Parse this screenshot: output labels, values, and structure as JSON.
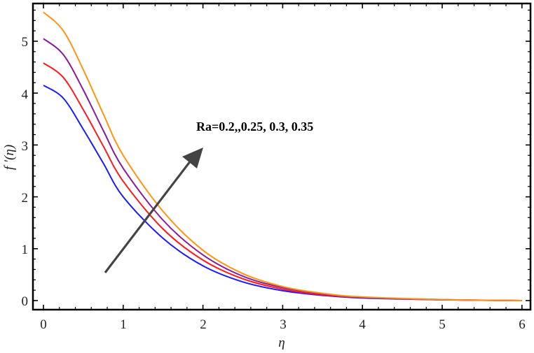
{
  "chart_data": {
    "type": "line",
    "title": "",
    "xlabel": "η",
    "ylabel": "f ′(η)",
    "xlim": [
      -0.1,
      6.1
    ],
    "ylim": [
      -0.15,
      5.75
    ],
    "xticks": [
      0,
      1,
      2,
      3,
      4,
      5,
      6
    ],
    "yticks": [
      0,
      1,
      2,
      3,
      4,
      5
    ],
    "grid": false,
    "legend": null,
    "annotation": {
      "text": "Ra=0.2,,0.25, 0.3, 0.35",
      "arrow": {
        "from": [
          0.8,
          0.55
        ],
        "to": [
          2.0,
          2.95
        ],
        "color": "#444444"
      }
    },
    "x": [
      0,
      0.25,
      0.5,
      0.75,
      1,
      1.5,
      2,
      2.5,
      3,
      3.5,
      4,
      5,
      6
    ],
    "series": [
      {
        "name": "Ra=0.2",
        "color": "#1a1aff",
        "values": [
          4.15,
          3.9,
          3.3,
          2.65,
          2.0,
          1.2,
          0.67,
          0.36,
          0.19,
          0.1,
          0.05,
          0.015,
          0.0
        ]
      },
      {
        "name": "Ra=0.25",
        "color": "#ff1a1a",
        "values": [
          4.58,
          4.3,
          3.68,
          2.98,
          2.3,
          1.38,
          0.78,
          0.42,
          0.22,
          0.11,
          0.06,
          0.017,
          0.0
        ]
      },
      {
        "name": "Ra=0.3",
        "color": "#8b1a9b",
        "values": [
          5.05,
          4.74,
          4.06,
          3.28,
          2.55,
          1.55,
          0.88,
          0.47,
          0.25,
          0.13,
          0.065,
          0.018,
          0.0
        ]
      },
      {
        "name": "Ra=0.35",
        "color": "#ff9410",
        "values": [
          5.56,
          5.2,
          4.45,
          3.6,
          2.8,
          1.72,
          0.97,
          0.52,
          0.27,
          0.14,
          0.07,
          0.02,
          0.0
        ]
      }
    ]
  },
  "labels": {
    "xlabel": "η",
    "ylabel": "f ′(η)",
    "annotation": "Ra=0.2,,0.25, 0.3, 0.35",
    "xticks": [
      "0",
      "1",
      "2",
      "3",
      "4",
      "5",
      "6"
    ],
    "yticks": [
      "0",
      "1",
      "2",
      "3",
      "4",
      "5"
    ]
  }
}
